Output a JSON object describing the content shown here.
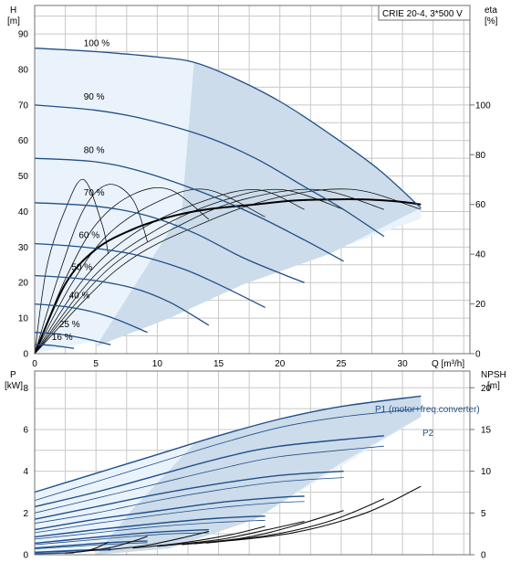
{
  "chart_data": [
    {
      "type": "line",
      "name_label": "CRIE 20-4, 3*500 V",
      "x_unit_label": "Q [m³/h]",
      "y_left_label": [
        "H",
        "[m]"
      ],
      "y_right_label": [
        "eta",
        "[%]"
      ],
      "xlim": [
        0,
        35.5
      ],
      "ylim_left": [
        0,
        98
      ],
      "ylim_right": [
        0,
        140
      ],
      "x_ticks": [
        "0",
        "5",
        "10",
        "15",
        "20",
        "25",
        "30"
      ],
      "y_left_ticks": [
        "0",
        "10",
        "20",
        "30",
        "40",
        "50",
        "60",
        "70",
        "80",
        "90"
      ],
      "y_right_ticks": [
        "0",
        "20",
        "40",
        "60",
        "80",
        "100"
      ],
      "head_curves": [
        {
          "speed_label": "100 %",
          "label_at": [
            4,
            86
          ],
          "x": [
            0,
            5,
            10,
            13,
            16,
            20,
            24,
            28,
            31.5
          ],
          "y": [
            86,
            85,
            83.5,
            82,
            78,
            71,
            62,
            52,
            41
          ]
        },
        {
          "speed_label": "90 %",
          "label_at": [
            4,
            71
          ],
          "x": [
            0,
            5,
            9,
            14,
            18,
            22,
            25,
            28.5
          ],
          "y": [
            70,
            68.5,
            66,
            61,
            55,
            47,
            41,
            33
          ]
        },
        {
          "speed_label": "80 %",
          "label_at": [
            4,
            56
          ],
          "x": [
            0,
            5,
            9,
            14,
            18,
            22,
            25.2
          ],
          "y": [
            55,
            54,
            51,
            45,
            39,
            32,
            26
          ]
        },
        {
          "speed_label": "70 %",
          "label_at": [
            4,
            44
          ],
          "x": [
            0,
            5,
            9,
            13,
            17,
            20.5,
            22
          ],
          "y": [
            42.5,
            41.5,
            39,
            34,
            27,
            22,
            20
          ]
        },
        {
          "speed_label": "60 %",
          "label_at": [
            3.6,
            32
          ],
          "x": [
            0,
            4,
            8,
            12,
            15,
            18.8
          ],
          "y": [
            31,
            30,
            28,
            24,
            19.5,
            13
          ]
        },
        {
          "speed_label": "50 %",
          "label_at": [
            3,
            23
          ],
          "x": [
            0,
            4,
            8,
            11,
            14.2
          ],
          "y": [
            22,
            21,
            18.5,
            14.5,
            8
          ]
        },
        {
          "speed_label": "40 %",
          "label_at": [
            2.8,
            15
          ],
          "x": [
            0,
            3,
            6,
            9.2
          ],
          "y": [
            14,
            13,
            10.5,
            6
          ]
        },
        {
          "speed_label": "25 %",
          "label_at": [
            2,
            7
          ],
          "x": [
            0,
            2,
            4,
            6.2
          ],
          "y": [
            6,
            5.5,
            4.3,
            2.5
          ]
        },
        {
          "speed_label": "16 %",
          "label_at": [
            1.4,
            3.3
          ],
          "x": [
            0,
            1.5,
            3.2
          ],
          "y": [
            2.6,
            2.3,
            1.5
          ]
        }
      ],
      "eta_curves": [
        {
          "x": [
            0,
            1,
            2.5,
            4,
            5.5,
            6
          ],
          "y": [
            0,
            35,
            58,
            70,
            52,
            40
          ]
        },
        {
          "x": [
            0,
            2,
            4,
            6,
            8,
            9.2
          ],
          "y": [
            0,
            32,
            58,
            68,
            62,
            45
          ]
        },
        {
          "x": [
            0,
            2.5,
            5,
            8,
            11,
            14.2
          ],
          "y": [
            0,
            30,
            52,
            64,
            66,
            54
          ]
        },
        {
          "x": [
            0,
            3,
            6,
            10,
            14,
            18.8
          ],
          "y": [
            0,
            28,
            48,
            61,
            66,
            55
          ]
        },
        {
          "x": [
            0,
            4,
            8,
            13,
            18,
            22
          ],
          "y": [
            0,
            30,
            48,
            60,
            66,
            58
          ]
        },
        {
          "x": [
            0,
            5,
            10,
            15,
            20,
            25.2
          ],
          "y": [
            0,
            32,
            50,
            61,
            66,
            58
          ]
        },
        {
          "x": [
            0,
            6,
            12,
            17,
            23,
            28.5
          ],
          "y": [
            0,
            34,
            52,
            62,
            66,
            58
          ]
        },
        {
          "x": [
            0,
            7,
            14,
            20,
            26,
            31.5
          ],
          "y": [
            0,
            35,
            53,
            63,
            66,
            58
          ]
        }
      ],
      "efficiency_envelope_x": [
        0,
        2.5,
        5,
        8,
        11,
        14,
        18,
        21,
        24,
        27,
        30,
        31.5
      ],
      "efficiency_envelope_y": [
        0,
        28,
        42,
        50,
        55,
        58,
        60,
        61.5,
        62,
        62,
        61,
        60
      ]
    },
    {
      "type": "line",
      "x_unit_label": "",
      "y_left_label": [
        "P",
        "[kW]"
      ],
      "y_right_label": [
        "NPSH",
        "[m]"
      ],
      "xlim": [
        0,
        35.5
      ],
      "ylim_left": [
        0,
        8.8
      ],
      "ylim_right": [
        0,
        22
      ],
      "y_left_ticks": [
        "0",
        "2",
        "4",
        "6",
        "8"
      ],
      "y_right_ticks": [
        "0",
        "5",
        "10",
        "15",
        "20"
      ],
      "p1_label": "P1 (motor+freq.converter)",
      "p2_label": "P2",
      "power_curves": [
        {
          "kind": "P1",
          "x": [
            0,
            5,
            10,
            15,
            20,
            25,
            31.5
          ],
          "y": [
            3,
            3.9,
            4.8,
            5.7,
            6.5,
            7.1,
            7.6
          ]
        },
        {
          "kind": "P2",
          "x": [
            0,
            5,
            10,
            15,
            20,
            25,
            31.5
          ],
          "y": [
            2.6,
            3.5,
            4.4,
            5.3,
            6.1,
            6.6,
            7.0
          ]
        },
        {
          "kind": "P1",
          "x": [
            0,
            5,
            10,
            15,
            20,
            28.5
          ],
          "y": [
            2.3,
            3.0,
            3.8,
            4.6,
            5.2,
            5.7
          ]
        },
        {
          "kind": "P2",
          "x": [
            0,
            5,
            10,
            15,
            20,
            28.5
          ],
          "y": [
            2.0,
            2.7,
            3.4,
            4.1,
            4.7,
            5.2
          ]
        },
        {
          "kind": "P1",
          "x": [
            0,
            5,
            10,
            15,
            20,
            25.2
          ],
          "y": [
            1.7,
            2.3,
            2.9,
            3.4,
            3.8,
            4.0
          ]
        },
        {
          "kind": "P2",
          "x": [
            0,
            5,
            10,
            15,
            20,
            25.2
          ],
          "y": [
            1.5,
            2.0,
            2.6,
            3.1,
            3.5,
            3.7
          ]
        },
        {
          "kind": "P1",
          "x": [
            0,
            5,
            10,
            15,
            20,
            22
          ],
          "y": [
            1.2,
            1.7,
            2.1,
            2.5,
            2.75,
            2.8
          ]
        },
        {
          "kind": "P2",
          "x": [
            0,
            5,
            10,
            15,
            20,
            22
          ],
          "y": [
            1.05,
            1.5,
            1.9,
            2.25,
            2.5,
            2.55
          ]
        },
        {
          "kind": "P1",
          "x": [
            0,
            5,
            10,
            15,
            18.8
          ],
          "y": [
            0.85,
            1.2,
            1.5,
            1.75,
            1.85
          ]
        },
        {
          "kind": "P2",
          "x": [
            0,
            5,
            10,
            15,
            18.8
          ],
          "y": [
            0.75,
            1.05,
            1.35,
            1.55,
            1.65
          ]
        },
        {
          "kind": "P1",
          "x": [
            0,
            4,
            8,
            11,
            14.2
          ],
          "y": [
            0.55,
            0.78,
            1.0,
            1.12,
            1.2
          ]
        },
        {
          "kind": "P2",
          "x": [
            0,
            4,
            8,
            11,
            14.2
          ],
          "y": [
            0.48,
            0.68,
            0.88,
            1.0,
            1.05
          ]
        },
        {
          "kind": "P1",
          "x": [
            0,
            3,
            6,
            9.2
          ],
          "y": [
            0.32,
            0.45,
            0.58,
            0.66
          ]
        },
        {
          "kind": "P2",
          "x": [
            0,
            3,
            6,
            9.2
          ],
          "y": [
            0.28,
            0.39,
            0.5,
            0.58
          ]
        },
        {
          "kind": "P1",
          "x": [
            0,
            2,
            4,
            6.2
          ],
          "y": [
            0.12,
            0.17,
            0.22,
            0.26
          ]
        },
        {
          "kind": "P2",
          "x": [
            0,
            2,
            4,
            6.2
          ],
          "y": [
            0.1,
            0.14,
            0.18,
            0.22
          ]
        },
        {
          "kind": "P1",
          "x": [
            0,
            1.5,
            3.2
          ],
          "y": [
            0.05,
            0.07,
            0.09
          ]
        }
      ],
      "npsh_curves": [
        {
          "x": [
            2.5,
            4,
            5,
            6
          ],
          "y": [
            0.2,
            0.4,
            0.8,
            1.5
          ]
        },
        {
          "x": [
            4,
            6,
            8,
            9.2
          ],
          "y": [
            0.4,
            0.8,
            1.6,
            2.2
          ]
        },
        {
          "x": [
            6,
            9,
            12,
            14.2
          ],
          "y": [
            0.6,
            1.1,
            2.0,
            2.8
          ]
        },
        {
          "x": [
            8,
            12,
            16,
            18.8
          ],
          "y": [
            0.8,
            1.4,
            2.4,
            3.4
          ]
        },
        {
          "x": [
            10,
            15,
            19,
            22
          ],
          "y": [
            1.0,
            1.8,
            3.0,
            4.0
          ]
        },
        {
          "x": [
            12,
            17,
            21,
            25.2
          ],
          "y": [
            1.2,
            2.0,
            3.4,
            5.3
          ]
        },
        {
          "x": [
            13,
            19,
            24,
            28.5
          ],
          "y": [
            1.3,
            2.3,
            4.0,
            6.7
          ]
        },
        {
          "x": [
            14,
            21,
            27,
            31.5
          ],
          "y": [
            1.4,
            2.6,
            5.0,
            8.2
          ]
        }
      ]
    }
  ]
}
